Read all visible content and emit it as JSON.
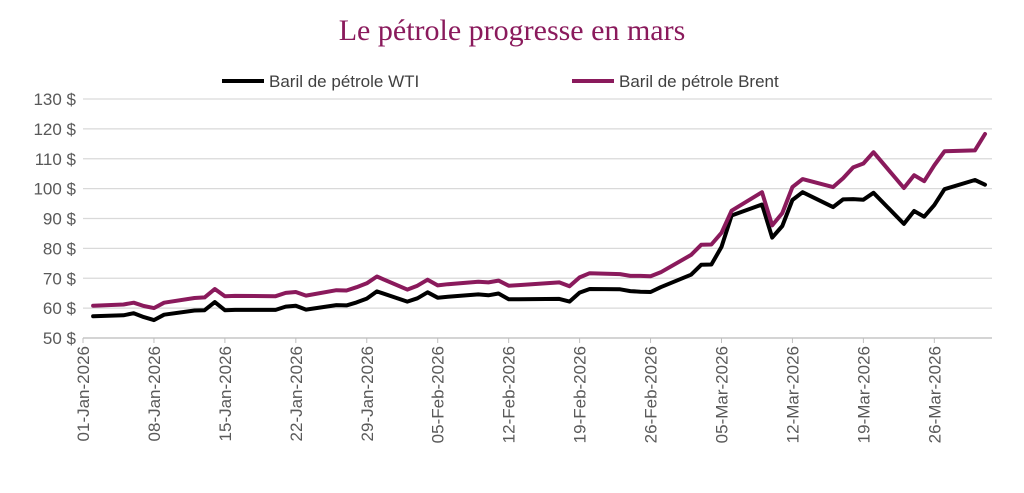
{
  "chart_data": {
    "type": "line",
    "title": "Le pétrole progresse en mars",
    "xlabel": "",
    "ylabel": "",
    "ylim": [
      50,
      130
    ],
    "yticks": [
      "50 $",
      "60 $",
      "70 $",
      "80 $",
      "90 $",
      "100 $",
      "110 $",
      "120 $",
      "130 $"
    ],
    "xticks": [
      "01-Jan-2026",
      "08-Jan-2026",
      "15-Jan-2026",
      "22-Jan-2026",
      "29-Jan-2026",
      "05-Feb-2026",
      "12-Feb-2026",
      "19-Feb-2026",
      "26-Feb-2026",
      "05-Mar-2026",
      "12-Mar-2026",
      "19-Mar-2026",
      "26-Mar-2026"
    ],
    "xlim": [
      "2026-01-01",
      "2026-03-31"
    ],
    "grid": true,
    "legend": "top",
    "x": [
      "2026-01-02",
      "2026-01-05",
      "2026-01-06",
      "2026-01-07",
      "2026-01-08",
      "2026-01-09",
      "2026-01-12",
      "2026-01-13",
      "2026-01-14",
      "2026-01-15",
      "2026-01-16",
      "2026-01-20",
      "2026-01-21",
      "2026-01-22",
      "2026-01-23",
      "2026-01-26",
      "2026-01-27",
      "2026-01-28",
      "2026-01-29",
      "2026-01-30",
      "2026-02-02",
      "2026-02-03",
      "2026-02-04",
      "2026-02-05",
      "2026-02-06",
      "2026-02-09",
      "2026-02-10",
      "2026-02-11",
      "2026-02-12",
      "2026-02-13",
      "2026-02-17",
      "2026-02-18",
      "2026-02-19",
      "2026-02-20",
      "2026-02-23",
      "2026-02-24",
      "2026-02-25",
      "2026-02-26",
      "2026-02-27",
      "2026-03-02",
      "2026-03-03",
      "2026-03-04",
      "2026-03-05",
      "2026-03-06",
      "2026-03-09",
      "2026-03-10",
      "2026-03-11",
      "2026-03-12",
      "2026-03-13",
      "2026-03-16",
      "2026-03-17",
      "2026-03-18",
      "2026-03-19",
      "2026-03-20",
      "2026-03-23",
      "2026-03-24",
      "2026-03-25",
      "2026-03-26",
      "2026-03-27",
      "2026-03-30",
      "2026-03-31"
    ],
    "series": [
      {
        "name": "Baril de pétrole WTI",
        "color": "#000000",
        "values": [
          57.3,
          57.6,
          58.3,
          57.0,
          56.0,
          57.8,
          59.2,
          59.3,
          62.0,
          59.3,
          59.4,
          59.4,
          60.5,
          60.8,
          59.5,
          61.0,
          60.9,
          61.9,
          63.2,
          65.6,
          62.2,
          63.3,
          65.3,
          63.5,
          63.8,
          64.6,
          64.3,
          64.9,
          63.0,
          63.0,
          63.1,
          62.2,
          65.2,
          66.4,
          66.3,
          65.7,
          65.5,
          65.4,
          67.0,
          71.2,
          74.5,
          74.6,
          80.5,
          91.0,
          94.7,
          83.6,
          87.5,
          96.2,
          98.8,
          93.8,
          96.4,
          96.5,
          96.3,
          98.6,
          88.2,
          92.5,
          90.6,
          94.5,
          99.8,
          102.9,
          101.3
        ]
      },
      {
        "name": "Baril de pétrole Brent",
        "color": "#8a1a5c",
        "values": [
          60.8,
          61.2,
          61.8,
          60.7,
          60.0,
          61.8,
          63.4,
          63.6,
          66.4,
          64.0,
          64.1,
          64.0,
          65.1,
          65.4,
          64.2,
          66.0,
          65.9,
          67.0,
          68.3,
          70.6,
          66.2,
          67.5,
          69.5,
          67.6,
          68.0,
          68.8,
          68.6,
          69.2,
          67.5,
          67.7,
          68.6,
          67.3,
          70.3,
          71.7,
          71.4,
          70.8,
          70.8,
          70.7,
          72.0,
          77.8,
          81.2,
          81.3,
          85.2,
          92.6,
          98.8,
          87.7,
          91.8,
          100.5,
          103.2,
          100.5,
          103.5,
          107.1,
          108.4,
          112.2,
          100.2,
          104.5,
          102.5,
          107.8,
          112.5,
          112.8,
          118.3
        ]
      }
    ]
  }
}
